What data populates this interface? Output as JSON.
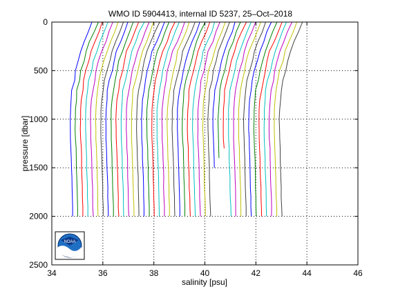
{
  "chart_data": {
    "type": "line",
    "title": "WMO ID 5904413, internal ID 5237, 25–Oct–2018",
    "xlabel": "salinity [psu]",
    "ylabel": "pressure [dbar]",
    "xlim": [
      34,
      46
    ],
    "ylim": [
      0,
      2500
    ],
    "y_reversed": true,
    "xticks": [
      34,
      36,
      38,
      40,
      42,
      44,
      46
    ],
    "yticks": [
      0,
      500,
      1000,
      1500,
      2000,
      2500
    ],
    "xtick_labels": [
      "34",
      "36",
      "38",
      "40",
      "42",
      "44",
      "46"
    ],
    "ytick_labels": [
      "0",
      "500",
      "1000",
      "1500",
      "2000",
      "2500"
    ],
    "grid": true,
    "grid_style": "dotted",
    "profile_offset_psu": 0.2,
    "profile_count": 42,
    "base_profile": {
      "pressure": [
        0,
        100,
        200,
        300,
        400,
        500,
        600,
        700,
        800,
        900,
        1000,
        1100,
        1200,
        1300,
        1400,
        1500,
        1600,
        1700,
        1800,
        1900,
        2000
      ],
      "salinity": [
        35.6,
        35.45,
        35.3,
        35.15,
        35.05,
        34.95,
        34.87,
        34.8,
        34.76,
        34.73,
        34.72,
        34.72,
        34.73,
        34.75,
        34.76,
        34.77,
        34.78,
        34.79,
        34.8,
        34.81,
        34.82
      ]
    },
    "series_colors": [
      "#0000ff",
      "#008000",
      "#ff0000",
      "#00bfbf",
      "#bf00bf",
      "#bfbf00",
      "#404040"
    ],
    "gaps": [
      {
        "profile_index": 28,
        "from_pressure": 1550,
        "to_pressure": 2000
      },
      {
        "profile_index": 29,
        "from_pressure": 1450,
        "to_pressure": 2000
      },
      {
        "profile_index": 30,
        "from_pressure": 1350,
        "to_pressure": 2000
      }
    ],
    "logo": {
      "text": "NOAA"
    }
  }
}
